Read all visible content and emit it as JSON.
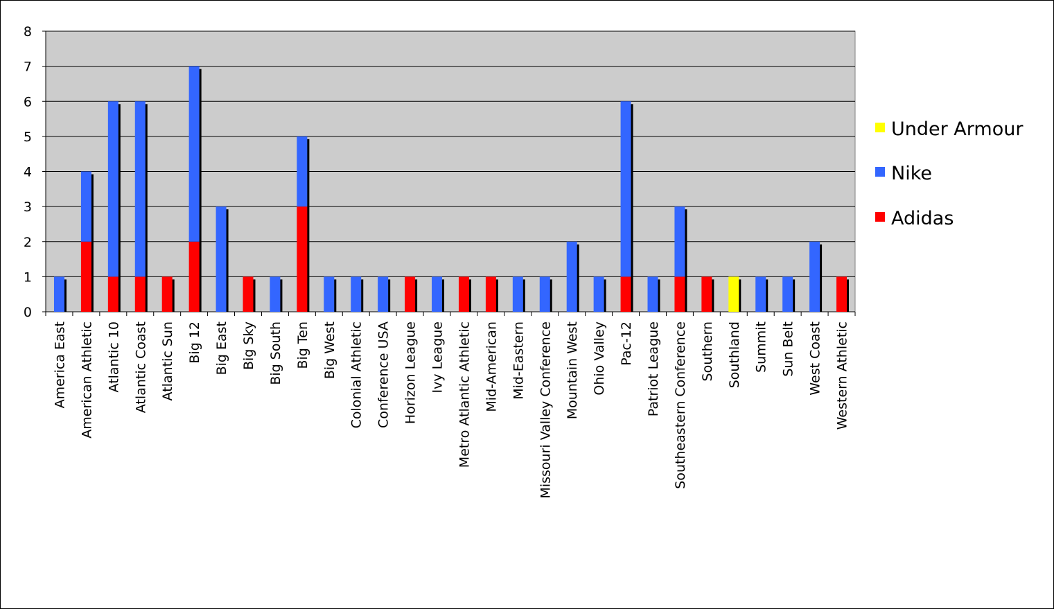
{
  "chart_data": {
    "type": "bar",
    "stacked": true,
    "categories": [
      "America East",
      "American Athletic",
      "Atlantic 10",
      "Atlantic Coast",
      "Atlantic Sun",
      "Big 12",
      "Big East",
      "Big Sky",
      "Big South",
      "Big Ten",
      "Big West",
      "Colonial Athletic",
      "Conference USA",
      "Horizon League",
      "Ivy League",
      "Metro Atlantic Athletic",
      "Mid-American",
      "Mid-Eastern",
      "Missouri Valley Conference",
      "Mountain West",
      "Ohio Valley",
      "Pac-12",
      "Patriot League",
      "Southeastern Conference",
      "Southern",
      "Southland",
      "Summit",
      "Sun Belt",
      "West Coast",
      "Western Athletic"
    ],
    "series": [
      {
        "name": "Adidas",
        "color": "#ff0000",
        "values": [
          0,
          2,
          1,
          1,
          1,
          2,
          0,
          1,
          0,
          3,
          0,
          0,
          0,
          1,
          0,
          1,
          1,
          0,
          0,
          0,
          0,
          1,
          0,
          1,
          1,
          0,
          0,
          0,
          0,
          1
        ]
      },
      {
        "name": "Nike",
        "color": "#3366ff",
        "values": [
          1,
          2,
          5,
          5,
          0,
          5,
          3,
          0,
          1,
          2,
          1,
          1,
          1,
          0,
          1,
          0,
          0,
          1,
          1,
          2,
          1,
          5,
          1,
          2,
          0,
          0,
          1,
          1,
          2,
          0
        ]
      },
      {
        "name": "Under Armour",
        "color": "#ffff00",
        "values": [
          0,
          0,
          0,
          0,
          0,
          0,
          0,
          0,
          0,
          0,
          0,
          0,
          0,
          0,
          0,
          0,
          0,
          0,
          0,
          0,
          0,
          0,
          0,
          0,
          0,
          1,
          0,
          0,
          0,
          0
        ]
      }
    ],
    "legend_order": [
      "Under Armour",
      "Nike",
      "Adidas"
    ],
    "ylim": [
      0,
      8
    ],
    "yticks": [
      "0",
      "1",
      "2",
      "3",
      "4",
      "5",
      "6",
      "7",
      "8"
    ],
    "grid": true,
    "plot_background": "#cccccc",
    "legend_position": "right"
  }
}
